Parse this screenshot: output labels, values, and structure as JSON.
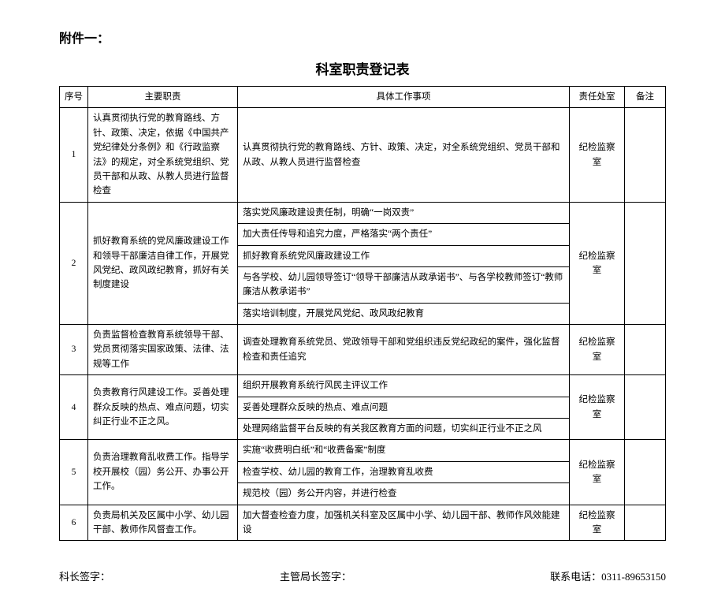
{
  "attachment_label": "附件一：",
  "title": "科室职责登记表",
  "columns": [
    "序号",
    "主要职责",
    "具体工作事项",
    "责任处室",
    "备注"
  ],
  "rows": [
    {
      "seq": "1",
      "duty": "认真贯彻执行党的教育路线、方针、政策、决定，依据《中国共产党纪律处分条例》和《行政监察法》的规定，对全系统党组织、党员干部和从政、从教人员进行监督检查",
      "items": [
        "认真贯彻执行党的教育路线、方针、政策、决定，对全系统党组织、党员干部和从政、从教人员进行监督检查"
      ],
      "dept": "纪检监察室",
      "note": ""
    },
    {
      "seq": "2",
      "duty": "抓好教育系统的党风廉政建设工作和领导干部廉洁自律工作，开展党风党纪、政风政纪教育，抓好有关制度建设",
      "items": [
        "落实党风廉政建设责任制，明确“一岗双责”",
        "加大责任传导和追究力度，严格落实“两个责任”",
        "抓好教育系统党风廉政建设工作",
        "与各学校、幼儿园领导签订“领导干部廉洁从政承诺书”、与各学校教师签订“教师廉洁从教承诺书”",
        "落实培训制度，开展党风党纪、政风政纪教育"
      ],
      "dept": "纪检监察室",
      "note": ""
    },
    {
      "seq": "3",
      "duty": "负责监督检查教育系统领导干部、党员贯彻落实国家政策、法律、法规等工作",
      "items": [
        "调查处理教育系统党员、党政领导干部和党组织违反党纪政纪的案件，强化监督检查和责任追究"
      ],
      "dept": "纪检监察室",
      "note": ""
    },
    {
      "seq": "4",
      "duty": "负责教育行风建设工作。妥善处理群众反映的热点、难点问题，切实纠正行业不正之风。",
      "items": [
        "组织开展教育系统行风民主评议工作",
        "妥善处理群众反映的热点、难点问题",
        "处理网络监督平台反映的有关我区教育方面的问题，切实纠正行业不正之风"
      ],
      "dept": "纪检监察室",
      "note": ""
    },
    {
      "seq": "5",
      "duty": "负责治理教育乱收费工作。指导学校开展校（园）务公开、办事公开工作。",
      "items": [
        "实施“收费明白纸”和“收费备案”制度",
        "检查学校、幼儿园的教育工作，治理教育乱收费",
        "规范校（园）务公开内容，并进行检查"
      ],
      "dept": "纪检监察室",
      "note": ""
    },
    {
      "seq": "6",
      "duty": "负责局机关及区属中小学、幼儿园干部、教师作风督查工作。",
      "items": [
        "加大督查检查力度，加强机关科室及区属中小学、幼儿园干部、教师作风效能建设"
      ],
      "dept": "纪检监察室",
      "note": ""
    }
  ],
  "footer": {
    "sig1": "科长签字：",
    "sig2": "主管局长签字：",
    "phone_label": "联系电话：",
    "phone": "0311-89653150"
  }
}
